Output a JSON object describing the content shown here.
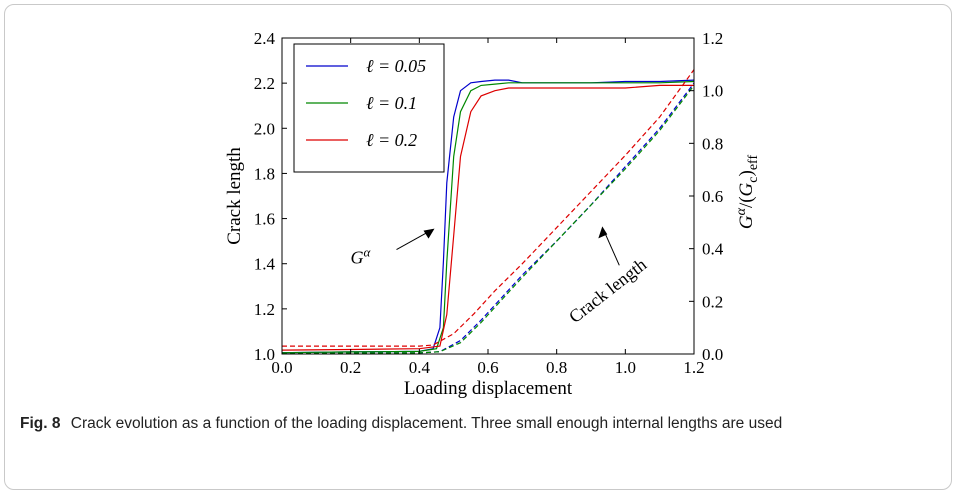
{
  "caption": {
    "label": "Fig. 8",
    "text": "Crack evolution as a function of the loading displacement. Three small enough internal lengths are used"
  },
  "chart_data": {
    "type": "line",
    "xlabel": "Loading displacement",
    "ylabel": "Crack length",
    "y2label": "Gα/(Gc)eff",
    "xlim": [
      0.0,
      1.2
    ],
    "ylim": [
      1.0,
      2.4
    ],
    "y2lim": [
      0.0,
      1.2
    ],
    "xticks": [
      "0.0",
      "0.2",
      "0.4",
      "0.6",
      "0.8",
      "1.0",
      "1.2"
    ],
    "yticks": [
      "1.0",
      "1.2",
      "1.4",
      "1.6",
      "1.8",
      "2.0",
      "2.2",
      "2.4"
    ],
    "y2ticks": [
      "0.0",
      "0.2",
      "0.4",
      "0.6",
      "0.8",
      "1.0",
      "1.2"
    ],
    "legend_position": "top-left",
    "annotations": [
      {
        "text": "Gα",
        "target_x": 0.45,
        "target_y": 1.56
      },
      {
        "text": "Crack length",
        "target_x": 0.93,
        "target_y": 1.57
      }
    ],
    "series": [
      {
        "name": "ℓ = 0.05",
        "color": "#0000cc",
        "axis": "right",
        "style": "solid",
        "x": [
          0.0,
          0.2,
          0.4,
          0.44,
          0.46,
          0.47,
          0.48,
          0.5,
          0.52,
          0.55,
          0.58,
          0.62,
          0.66,
          0.7,
          0.8,
          0.9,
          1.0,
          1.1,
          1.2
        ],
        "y": [
          0.005,
          0.008,
          0.01,
          0.02,
          0.1,
          0.35,
          0.65,
          0.9,
          1.0,
          1.03,
          1.035,
          1.04,
          1.04,
          1.03,
          1.03,
          1.03,
          1.035,
          1.035,
          1.04
        ]
      },
      {
        "name": "ℓ = 0.1",
        "color": "#008800",
        "axis": "right",
        "style": "solid",
        "x": [
          0.0,
          0.2,
          0.4,
          0.45,
          0.47,
          0.48,
          0.5,
          0.52,
          0.55,
          0.58,
          0.62,
          0.66,
          0.7,
          0.8,
          0.9,
          1.0,
          1.1,
          1.2
        ],
        "y": [
          0.005,
          0.008,
          0.01,
          0.02,
          0.1,
          0.35,
          0.75,
          0.92,
          1.0,
          1.02,
          1.025,
          1.03,
          1.03,
          1.03,
          1.03,
          1.03,
          1.03,
          1.035
        ]
      },
      {
        "name": "ℓ = 0.2",
        "color": "#dd0000",
        "axis": "right",
        "style": "solid",
        "x": [
          0.0,
          0.2,
          0.4,
          0.46,
          0.48,
          0.5,
          0.52,
          0.55,
          0.58,
          0.62,
          0.66,
          0.7,
          0.8,
          0.9,
          1.0,
          1.1,
          1.2
        ],
        "y": [
          0.015,
          0.017,
          0.02,
          0.03,
          0.15,
          0.45,
          0.75,
          0.92,
          0.98,
          1.0,
          1.01,
          1.01,
          1.01,
          1.01,
          1.01,
          1.02,
          1.02
        ]
      },
      {
        "name": "",
        "color": "#0000cc",
        "axis": "left",
        "style": "dashed",
        "x": [
          0.0,
          0.4,
          0.46,
          0.52,
          0.58,
          0.64,
          0.7,
          0.8,
          0.9,
          1.0,
          1.1,
          1.2
        ],
        "y": [
          1.005,
          1.005,
          1.01,
          1.06,
          1.15,
          1.25,
          1.35,
          1.5,
          1.66,
          1.83,
          2.0,
          2.2
        ]
      },
      {
        "name": "",
        "color": "#008800",
        "axis": "left",
        "style": "dashed",
        "x": [
          0.0,
          0.4,
          0.46,
          0.52,
          0.58,
          0.64,
          0.7,
          0.8,
          0.9,
          1.0,
          1.1,
          1.2
        ],
        "y": [
          1.005,
          1.005,
          1.01,
          1.05,
          1.14,
          1.24,
          1.34,
          1.5,
          1.66,
          1.82,
          1.99,
          2.19
        ]
      },
      {
        "name": "",
        "color": "#dd0000",
        "axis": "left",
        "style": "dashed",
        "x": [
          0.0,
          0.4,
          0.44,
          0.5,
          0.56,
          0.62,
          0.7,
          0.8,
          0.9,
          1.0,
          1.1,
          1.2
        ],
        "y": [
          1.035,
          1.035,
          1.04,
          1.09,
          1.18,
          1.28,
          1.4,
          1.56,
          1.72,
          1.88,
          2.05,
          2.26
        ]
      }
    ]
  }
}
